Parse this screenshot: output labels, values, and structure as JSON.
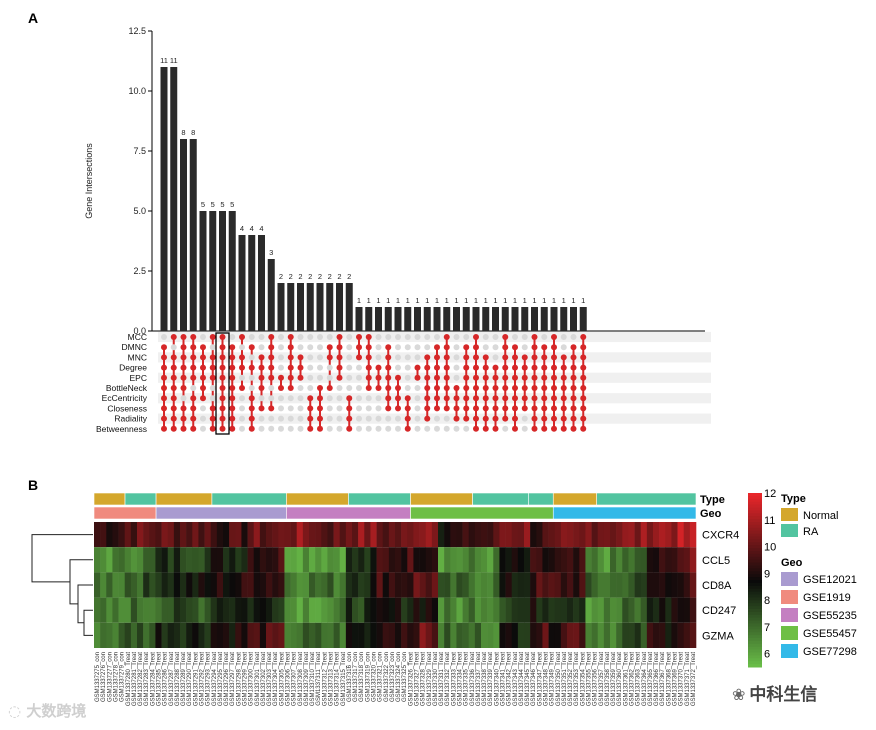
{
  "panel_a_label": "A",
  "panel_b_label": "B",
  "watermark_left": "大数跨境",
  "watermark_right": "中科生信",
  "colors": {
    "bar": "#2b2b2b",
    "dot_active": "#d62728",
    "dot_inactive": "#d9d9d9",
    "stripe": "#f0f0f0",
    "highlight_box": "#000000",
    "type_normal": "#d4a72c",
    "type_ra": "#52c4a0",
    "geo_gse12021": "#a99bd0",
    "geo_gse1919": "#f08a7e",
    "geo_gse55235": "#c47fc1",
    "geo_gse55457": "#6ebf45",
    "geo_gse77298": "#33b9e8",
    "heat_low": "#6cc24a",
    "heat_mid": "#0a0a0a",
    "heat_high": "#e8262a"
  },
  "chart_data": [
    {
      "type": "bar",
      "subtype": "upset",
      "ylabel": "Gene Intersections",
      "ylim": [
        0,
        12.5
      ],
      "yticks": [
        "0.0",
        "2.5",
        "5.0",
        "7.5",
        "10.0",
        "12.5"
      ],
      "ytick_values": [
        0,
        2.5,
        5,
        7.5,
        10,
        12.5
      ],
      "sets": [
        "MCC",
        "DMNC",
        "MNC",
        "Degree",
        "EPC",
        "BottleNeck",
        "EcCentricity",
        "Closeness",
        "Radiality",
        "Betweenness"
      ],
      "values": [
        11,
        11,
        8,
        8,
        5,
        5,
        5,
        5,
        4,
        4,
        4,
        3,
        2,
        2,
        2,
        2,
        2,
        2,
        2,
        2,
        1,
        1,
        1,
        1,
        1,
        1,
        1,
        1,
        1,
        1,
        1,
        1,
        1,
        1,
        1,
        1,
        1,
        1,
        1,
        1,
        1,
        1,
        1,
        1
      ],
      "value_labels": [
        "11",
        "11",
        "8",
        "8",
        "5",
        "5",
        "5",
        "5",
        "4",
        "4",
        "4",
        "3",
        "2",
        "2",
        "2",
        "2",
        "2",
        "2",
        "2",
        "2",
        "1",
        "1",
        "1",
        "1",
        "1",
        "1",
        "1",
        "1",
        "1",
        "1",
        "1",
        "1",
        "1",
        "1",
        "1",
        "1",
        "1",
        "1",
        "1",
        "1",
        "1",
        "1",
        "1",
        "1"
      ],
      "intersections": [
        [
          1,
          2,
          3,
          4,
          5,
          6,
          7,
          8,
          9
        ],
        [
          0,
          2,
          3,
          4,
          5,
          6,
          7,
          8,
          9
        ],
        [
          0,
          1,
          2,
          3,
          4,
          5,
          7,
          8,
          9
        ],
        [
          0,
          1,
          2,
          3,
          4,
          6,
          7,
          8,
          9
        ],
        [
          1,
          2,
          3,
          4,
          5,
          6
        ],
        [
          0,
          2,
          3,
          4,
          7,
          8,
          9
        ],
        [
          0,
          1,
          2,
          3,
          4,
          5,
          6,
          7,
          8,
          9
        ],
        [
          1,
          2,
          3,
          4,
          5,
          6,
          7,
          8,
          9
        ],
        [
          0,
          2,
          3,
          5
        ],
        [
          1,
          3,
          6,
          7,
          8,
          9
        ],
        [
          2,
          3,
          4,
          5,
          7
        ],
        [
          0,
          1,
          2,
          3,
          4,
          7
        ],
        [
          4,
          5
        ],
        [
          0,
          1,
          2,
          3,
          4,
          5
        ],
        [
          2,
          3,
          4
        ],
        [
          6,
          7,
          8,
          9
        ],
        [
          5,
          6,
          7,
          8,
          9
        ],
        [
          1,
          2,
          5
        ],
        [
          0,
          1,
          2,
          3,
          4
        ],
        [
          6,
          7,
          8,
          9
        ],
        [
          0,
          1,
          2
        ],
        [
          0,
          1,
          2,
          3,
          4,
          5
        ],
        [
          3,
          4,
          5
        ],
        [
          1,
          2,
          3,
          4,
          5,
          6,
          7
        ],
        [
          4,
          5,
          6,
          7
        ],
        [
          6,
          7,
          8,
          9
        ],
        [
          3,
          4
        ],
        [
          2,
          3,
          4,
          5,
          6,
          7,
          8
        ],
        [
          1,
          2,
          3,
          4,
          5,
          6,
          7
        ],
        [
          0,
          1,
          2,
          3,
          4,
          5,
          6,
          7
        ],
        [
          5,
          6,
          7,
          8
        ],
        [
          1,
          2,
          3,
          4,
          5,
          6,
          7,
          8
        ],
        [
          0,
          1,
          2,
          3,
          4,
          5,
          6,
          7,
          8,
          9
        ],
        [
          2,
          3,
          4,
          5,
          6,
          7,
          8,
          9
        ],
        [
          3,
          4,
          5,
          6,
          7,
          8,
          9
        ],
        [
          0,
          1,
          2,
          3,
          4,
          5,
          6,
          7,
          8
        ],
        [
          1,
          2,
          3,
          4,
          5,
          6,
          7,
          8,
          9
        ],
        [
          2,
          3,
          4,
          5,
          6,
          7
        ],
        [
          0,
          1,
          2,
          3,
          4,
          5,
          6,
          7,
          8,
          9
        ],
        [
          1,
          2,
          3,
          4,
          5,
          6,
          7,
          8,
          9
        ],
        [
          0,
          1,
          2,
          3,
          4,
          5,
          6,
          7,
          8,
          9
        ],
        [
          2,
          3,
          4,
          5,
          6,
          7,
          8,
          9
        ],
        [
          1,
          2,
          3,
          4,
          5,
          6,
          7,
          8,
          9
        ],
        [
          0,
          1,
          2,
          3,
          4,
          5,
          6,
          7,
          8,
          9
        ]
      ],
      "highlighted_column": 6
    },
    {
      "type": "heatmap",
      "rows": [
        "CXCR4",
        "CCL5",
        "CD8A",
        "CD247",
        "GZMA"
      ],
      "color_scale": {
        "min": 5.5,
        "max": 12,
        "ticks": [
          "6",
          "7",
          "8",
          "9",
          "10",
          "11",
          "12"
        ],
        "tick_values": [
          6,
          7,
          8,
          9,
          10,
          11,
          12
        ]
      },
      "annotation_labels": [
        "Type",
        "Geo"
      ],
      "legend_type_title": "Type",
      "legend_type_entries": [
        "Normal",
        "RA"
      ],
      "legend_geo_title": "Geo",
      "legend_geo_entries": [
        "GSE12021",
        "GSE1919",
        "GSE55235",
        "GSE55457",
        "GSE77298"
      ],
      "type_segments": [
        {
          "group": "Normal",
          "count": 5
        },
        {
          "group": "RA",
          "count": 5
        },
        {
          "group": "Normal",
          "count": 9
        },
        {
          "group": "RA",
          "count": 12
        },
        {
          "group": "Normal",
          "count": 10
        },
        {
          "group": "RA",
          "count": 10
        },
        {
          "group": "Normal",
          "count": 10
        },
        {
          "group": "RA",
          "count": 9
        },
        {
          "group": "RA",
          "count": 4
        },
        {
          "group": "Normal",
          "count": 7
        },
        {
          "group": "RA",
          "count": 16
        }
      ],
      "geo_segments": [
        {
          "group": "GSE1919",
          "count": 10
        },
        {
          "group": "GSE12021",
          "count": 21
        },
        {
          "group": "GSE55235",
          "count": 20
        },
        {
          "group": "GSE55457",
          "count": 23
        },
        {
          "group": "GSE77298",
          "count": 23
        }
      ],
      "block_levels": {
        "CXCR4": [
          9.5,
          10,
          10,
          9.5,
          10,
          10.5,
          10,
          10.5,
          10,
          11,
          9,
          9.5,
          10.5,
          9.5,
          10,
          10.5,
          10.5,
          11,
          11,
          10
        ],
        "CCL5": [
          6.5,
          7,
          8,
          8.5,
          9.5,
          6.5,
          6.5,
          8,
          9.5,
          9.5,
          6.5,
          6.5,
          8.5,
          9,
          9,
          6.5,
          7,
          9,
          10,
          9.5
        ],
        "CD8A": [
          7,
          7.5,
          8.5,
          9,
          9.5,
          7,
          7,
          8.5,
          9.5,
          10,
          7,
          7,
          8.5,
          9.5,
          9.5,
          7,
          7.5,
          9,
          9.5,
          9.5
        ],
        "CD247": [
          6.5,
          7,
          7.5,
          8.5,
          8.5,
          6.5,
          6.5,
          8,
          8.5,
          9,
          6.5,
          7,
          8,
          8.5,
          8.5,
          6.5,
          7,
          8.5,
          9,
          9
        ],
        "GZMA": [
          7,
          7.5,
          8.5,
          9,
          9.5,
          7,
          7,
          8.5,
          9.5,
          10,
          7,
          7,
          8.5,
          9.5,
          10,
          7,
          7.5,
          9,
          9.5,
          10
        ]
      },
      "block_sizes": [
        5,
        5,
        9,
        6,
        6,
        5,
        5,
        5,
        6,
        4,
        5,
        5,
        5,
        5,
        4,
        6,
        4,
        4,
        5,
        8
      ],
      "sample_labels": [
        "GSM1337275_con",
        "GSM1337276_con",
        "GSM1337277_con",
        "GSM1337278_con",
        "GSM1337279_con",
        "GSM1337280_Treat",
        "GSM1337281_Treat",
        "GSM1337282_Treat",
        "GSM1337283_Treat",
        "GSM1337284_Treat",
        "GSM1337285_Treat",
        "GSM1337286_Treat",
        "GSM1337287_Treat",
        "GSM1337288_Treat",
        "GSM1337289_Treat",
        "GSM1337290_Treat",
        "GSM1337291_Treat",
        "GSM1337292_Treat",
        "GSM1337293_Treat",
        "GSM1337294_Treat",
        "GSM1337295_Treat",
        "GSM1337296_Treat",
        "GSM1337297_Treat",
        "GSM1337298_Treat",
        "GSM1337299_Treat",
        "GSM1337300_Treat",
        "GSM1337301_Treat",
        "GSM1337302_Treat",
        "GSM1337303_Treat",
        "GSM1337304_Treat",
        "GSM1337305_Treat",
        "GSM1337306_Treat",
        "GSM1337307_Treat",
        "GSM1337308_Treat",
        "GSM1337309_Treat",
        "GSM1337310_Treat",
        "GSM1337311_Treat",
        "GSM1337312_Treat",
        "GSM1337313_Treat",
        "GSM1337314_Treat",
        "GSM1337315_Treat",
        "GSM1337316_con",
        "GSM1337317_con",
        "GSM1337318_con",
        "GSM1337319_con",
        "GSM1337320_con",
        "GSM1337321_con",
        "GSM1337322_con",
        "GSM1337323_con",
        "GSM1337324_con",
        "GSM1337325_con",
        "GSM1337326_Treat",
        "GSM1337327_Treat",
        "GSM1337328_Treat",
        "GSM1337329_Treat",
        "GSM1337330_Treat",
        "GSM1337331_Treat",
        "GSM1337332_Treat",
        "GSM1337333_Treat",
        "GSM1337334_Treat",
        "GSM1337335_Treat",
        "GSM1337336_Treat",
        "GSM1337337_Treat",
        "GSM1337338_Treat",
        "GSM1337339_Treat",
        "GSM1337340_Treat",
        "GSM1337341_Treat",
        "GSM1337342_Treat",
        "GSM1337343_Treat",
        "GSM1337344_Treat",
        "GSM1337345_Treat",
        "GSM1337346_Treat",
        "GSM1337347_Treat",
        "GSM1337348_Treat",
        "GSM1337349_Treat",
        "GSM1337350_Treat",
        "GSM1337351_Treat",
        "GSM1337352_Treat",
        "GSM1337353_Treat",
        "GSM1337354_Treat",
        "GSM1337355_Treat",
        "GSM1337356_Treat",
        "GSM1337357_Treat",
        "GSM1337358_Treat",
        "GSM1337359_Treat",
        "GSM1337360_Treat",
        "GSM1337361_Treat",
        "GSM1337362_Treat",
        "GSM1337363_Treat",
        "GSM1337364_Treat",
        "GSM1337365_Treat",
        "GSM1337366_Treat",
        "GSM1337367_Treat",
        "GSM1337368_Treat",
        "GSM1337369_Treat",
        "GSM1337370_Treat",
        "GSM1337371_Treat",
        "GSM1337372_Treat"
      ]
    }
  ]
}
